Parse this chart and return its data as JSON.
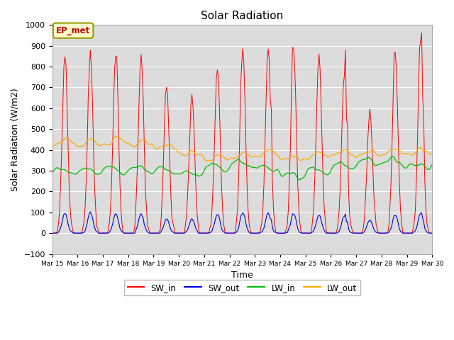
{
  "title": "Solar Radiation",
  "xlabel": "Time",
  "ylabel": "Solar Radiation (W/m2)",
  "ylim": [
    -100,
    1000
  ],
  "annotation": "EP_met",
  "bg_color": "#dcdcdc",
  "series_colors": {
    "SW_in": "#ff0000",
    "SW_out": "#0000ee",
    "LW_in": "#00bb00",
    "LW_out": "#ffaa00"
  },
  "xtick_labels": [
    "Mar 15",
    "Mar 16",
    "Mar 17",
    "Mar 18",
    "Mar 19",
    "Mar 20",
    "Mar 21",
    "Mar 22",
    "Mar 23",
    "Mar 24",
    "Mar 25",
    "Mar 26",
    "Mar 27",
    "Mar 28",
    "Mar 29",
    "Mar 30"
  ],
  "ytick_values": [
    -100,
    0,
    100,
    200,
    300,
    400,
    500,
    600,
    700,
    800,
    900,
    1000
  ],
  "day_peaks_sw": [
    855,
    860,
    870,
    855,
    705,
    660,
    800,
    880,
    895,
    880,
    860,
    775,
    590,
    875,
    915
  ],
  "day_peaks_sw_out": [
    97,
    98,
    92,
    92,
    68,
    68,
    93,
    98,
    97,
    92,
    88,
    82,
    62,
    88,
    93
  ],
  "lw_in_base": 295,
  "lw_out_base": 330
}
